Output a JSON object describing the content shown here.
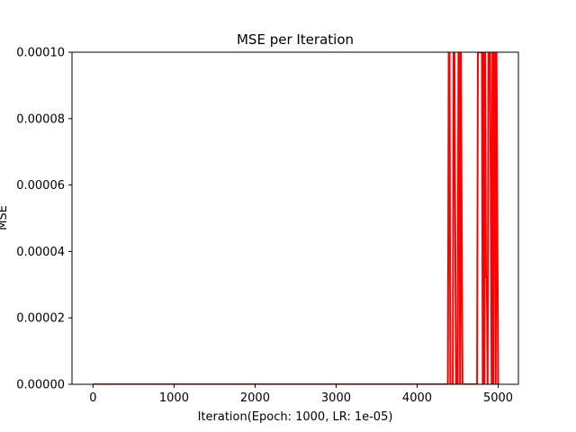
{
  "chart_data": {
    "type": "line",
    "title": "MSE per Iteration",
    "xlabel": "Iteration(Epoch: 1000, LR: 1e-05)",
    "ylabel": "MSE",
    "xlim": [
      -260,
      5250
    ],
    "ylim": [
      0,
      0.0001
    ],
    "xticks": [
      0,
      1000,
      2000,
      3000,
      4000,
      5000
    ],
    "xtick_labels": [
      "0",
      "1000",
      "2000",
      "3000",
      "4000",
      "5000"
    ],
    "yticks": [
      0,
      2e-05,
      4e-05,
      6e-05,
      8e-05,
      0.0001
    ],
    "ytick_labels": [
      "0.00000",
      "0.00002",
      "0.00004",
      "0.00006",
      "0.00008",
      "0.00010"
    ],
    "grid": false,
    "series": [
      {
        "color": "#ff0000",
        "x": [
          0,
          4380,
          4390,
          4400,
          4410,
          4420,
          4440,
          4450,
          4460,
          4480,
          4500,
          4510,
          4520,
          4530,
          4540,
          4560,
          4740,
          4750,
          4760,
          4800,
          4810,
          4820,
          4830,
          4840,
          4850,
          4855,
          4860,
          4870,
          4880,
          4900,
          4920,
          4930,
          4940,
          4950,
          4960,
          4970,
          4980,
          5000
        ],
        "y": [
          0,
          0,
          0.0001,
          0.0001,
          0,
          0,
          0,
          0.0001,
          0.0001,
          0,
          0,
          0.0001,
          0.0001,
          0,
          0.0001,
          0,
          0,
          0.0001,
          0.0001,
          0.0001,
          0,
          0.0001,
          0,
          0.0001,
          3.23e-05,
          3.23e-05,
          3.23e-05,
          0,
          0.0001,
          0.0001,
          0,
          0.0001,
          0,
          0.0001,
          0.0001,
          0,
          0.0001,
          0
        ]
      }
    ]
  }
}
